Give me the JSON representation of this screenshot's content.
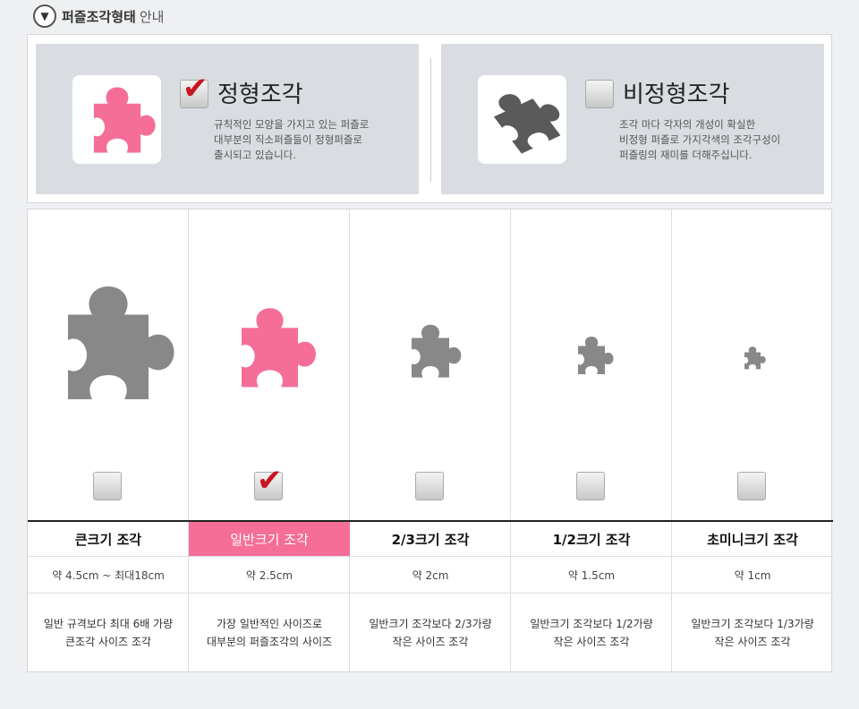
{
  "header": {
    "icon": "chevron-down-circle-icon",
    "title": "퍼즐조각형태",
    "subtitle": "안내"
  },
  "colors": {
    "pink": "#f46e98",
    "gray_piece": "#888888",
    "check": "#c8141e",
    "panel": "#d9dde1"
  },
  "types": [
    {
      "name": "정형조각",
      "checked": true,
      "piece_color": "#f46e98",
      "desc_lines": [
        "규칙적인 모양을 가지고 있는 퍼즐로",
        "대부분의 직소퍼즐들이 정형퍼즐로",
        "출시되고 있습니다."
      ]
    },
    {
      "name": "비정형조각",
      "checked": false,
      "piece_color": "#5a5a5a",
      "desc_lines": [
        "조각 마다 각자의 개성이 확실한",
        "비정형 퍼즐로 가지각색의 조각구성이",
        "퍼즐링의 재미를 더해주십니다."
      ]
    }
  ],
  "sizes": [
    {
      "label": "큰크기 조각",
      "checked": false,
      "size": "약 4.5cm ~ 최대18cm",
      "desc_lines": [
        "일반 규격보다 최대 6배 가량",
        "큰조각 사이즈 조각"
      ]
    },
    {
      "label": "일반크기 조각",
      "checked": true,
      "size": "약 2.5cm",
      "desc_lines": [
        "가장 일반적인 사이즈로",
        "대부분의 퍼즐조각의 사이즈"
      ]
    },
    {
      "label": "2/3크기 조각",
      "checked": false,
      "size": "약 2cm",
      "desc_lines": [
        "일반크기 조각보다 2/3가량",
        "작은 사이즈 조각"
      ]
    },
    {
      "label": "1/2크기 조각",
      "checked": false,
      "size": "약 1.5cm",
      "desc_lines": [
        "일반크기 조각보다 1/2가량",
        "작은 사이즈 조각"
      ]
    },
    {
      "label": "초미니크기 조각",
      "checked": false,
      "size": "약 1cm",
      "desc_lines": [
        "일반크기 조각보다 1/3가량",
        "작은 사이즈 조각"
      ]
    }
  ]
}
